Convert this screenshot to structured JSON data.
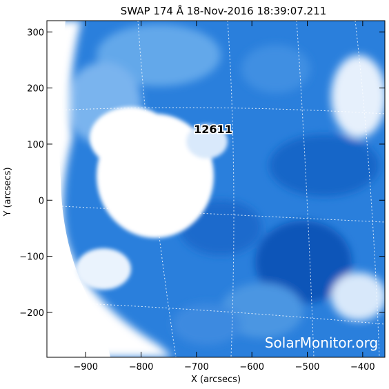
{
  "title": "SWAP 174 Å 18-Nov-2016 18:39:07.211",
  "x_axis": {
    "label": "X (arcsecs)",
    "ticks": [
      -900,
      -800,
      -700,
      -600,
      -500,
      -400
    ],
    "range": [
      -970,
      -360
    ]
  },
  "y_axis": {
    "label": "Y (arcsecs)",
    "ticks": [
      -200,
      -100,
      0,
      100,
      200,
      300
    ],
    "range": [
      -280,
      320
    ]
  },
  "region_label": "12611",
  "watermark": "SolarMonitor.org",
  "colors": {
    "background_blue": "#1a72d6",
    "bright_white": "#ffffff",
    "grid": "#ffffff"
  }
}
